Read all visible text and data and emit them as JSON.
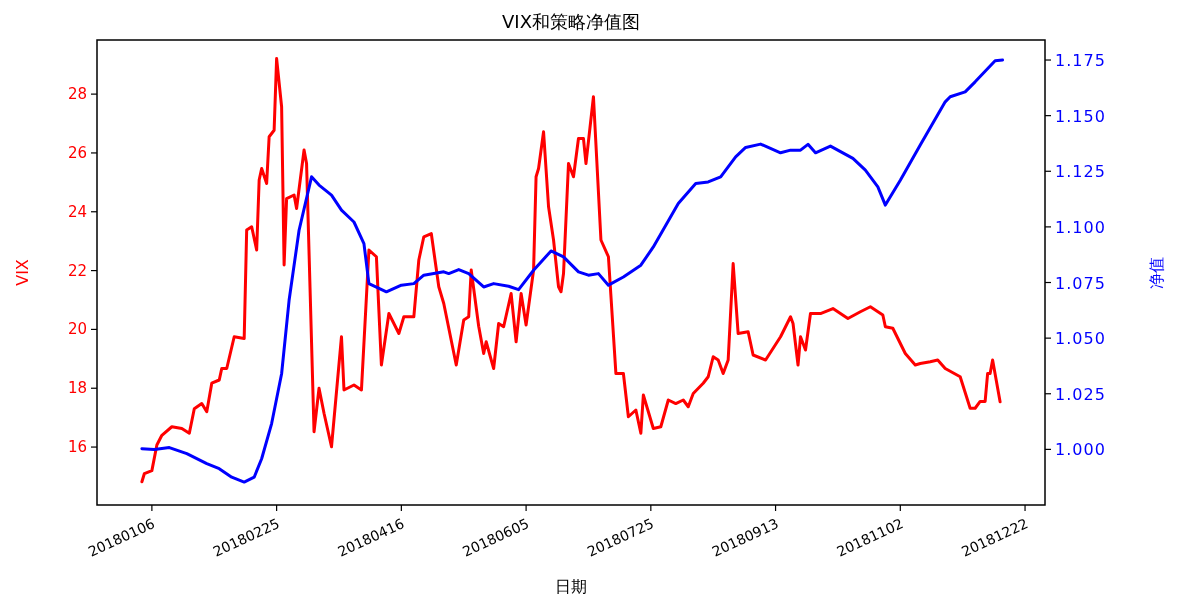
{
  "chart_data": {
    "type": "line",
    "title": "VIX和策略净值图",
    "xlabel": "日期",
    "ylabel": "VIX",
    "y2label": "净值",
    "xlim": [
      "2017-12-15",
      "2018-12-30"
    ],
    "xticks": [
      {
        "value": "2018-01-06",
        "label": "20180106"
      },
      {
        "value": "2018-02-25",
        "label": "20180225"
      },
      {
        "value": "2018-04-16",
        "label": "20180416"
      },
      {
        "value": "2018-06-05",
        "label": "20180605"
      },
      {
        "value": "2018-07-25",
        "label": "20180725"
      },
      {
        "value": "2018-09-13",
        "label": "20180913"
      },
      {
        "value": "2018-11-02",
        "label": "20181102"
      },
      {
        "value": "2018-12-22",
        "label": "20181222"
      }
    ],
    "ylim": [
      14.03,
      29.84
    ],
    "yticks": [
      16,
      18,
      20,
      22,
      24,
      26,
      28
    ],
    "y2lim": [
      0.975,
      1.184
    ],
    "y2ticks": [
      {
        "value": 1.0,
        "label": "1.000"
      },
      {
        "value": 1.025,
        "label": "1.025"
      },
      {
        "value": 1.05,
        "label": "1.050"
      },
      {
        "value": 1.075,
        "label": "1.075"
      },
      {
        "value": 1.1,
        "label": "1.100"
      },
      {
        "value": 1.125,
        "label": "1.125"
      },
      {
        "value": 1.15,
        "label": "1.150"
      },
      {
        "value": 1.175,
        "label": "1.175"
      }
    ],
    "series": [
      {
        "color": "#ff0000",
        "axis": "y",
        "x": [
          "2018-01-02",
          "2018-01-03",
          "2018-01-06",
          "2018-01-08",
          "2018-01-10",
          "2018-01-14",
          "2018-01-18",
          "2018-01-21",
          "2018-01-23",
          "2018-01-26",
          "2018-01-28",
          "2018-01-30",
          "2018-02-02",
          "2018-02-03",
          "2018-02-05",
          "2018-02-08",
          "2018-02-12",
          "2018-02-13",
          "2018-02-15",
          "2018-02-17",
          "2018-02-18",
          "2018-02-19",
          "2018-02-21",
          "2018-02-22",
          "2018-02-24",
          "2018-02-25",
          "2018-02-27",
          "2018-02-28",
          "2018-03-01",
          "2018-03-04",
          "2018-03-05",
          "2018-03-08",
          "2018-03-09",
          "2018-03-12",
          "2018-03-14",
          "2018-03-16",
          "2018-03-19",
          "2018-03-23",
          "2018-03-24",
          "2018-03-28",
          "2018-03-31",
          "2018-04-03",
          "2018-04-06",
          "2018-04-08",
          "2018-04-11",
          "2018-04-15",
          "2018-04-17",
          "2018-04-21",
          "2018-04-23",
          "2018-04-25",
          "2018-04-28",
          "2018-05-01",
          "2018-05-03",
          "2018-05-08",
          "2018-05-11",
          "2018-05-13",
          "2018-05-14",
          "2018-05-17",
          "2018-05-19",
          "2018-05-20",
          "2018-05-23",
          "2018-05-25",
          "2018-05-27",
          "2018-05-30",
          "2018-06-01",
          "2018-06-03",
          "2018-06-05",
          "2018-06-08",
          "2018-06-09",
          "2018-06-10",
          "2018-06-12",
          "2018-06-14",
          "2018-06-16",
          "2018-06-18",
          "2018-06-19",
          "2018-06-20",
          "2018-06-22",
          "2018-06-24",
          "2018-06-26",
          "2018-06-28",
          "2018-06-29",
          "2018-07-02",
          "2018-07-05",
          "2018-07-08",
          "2018-07-11",
          "2018-07-14",
          "2018-07-16",
          "2018-07-19",
          "2018-07-21",
          "2018-07-22",
          "2018-07-26",
          "2018-07-29",
          "2018-08-01",
          "2018-08-04",
          "2018-08-07",
          "2018-08-09",
          "2018-08-11",
          "2018-08-15",
          "2018-08-17",
          "2018-08-19",
          "2018-08-21",
          "2018-08-23",
          "2018-08-25",
          "2018-08-27",
          "2018-08-29",
          "2018-09-02",
          "2018-09-04",
          "2018-09-09",
          "2018-09-15",
          "2018-09-19",
          "2018-09-20",
          "2018-09-22",
          "2018-09-23",
          "2018-09-25",
          "2018-09-27",
          "2018-10-01",
          "2018-10-06",
          "2018-10-12",
          "2018-10-17",
          "2018-10-21",
          "2018-10-26",
          "2018-10-27",
          "2018-10-30",
          "2018-11-04",
          "2018-11-08",
          "2018-11-10",
          "2018-11-14",
          "2018-11-17",
          "2018-11-20",
          "2018-11-26",
          "2018-11-30",
          "2018-12-02",
          "2018-12-04",
          "2018-12-06",
          "2018-12-07",
          "2018-12-08",
          "2018-12-09",
          "2018-12-12"
        ],
        "values": [
          14.82,
          15.1,
          15.2,
          16.07,
          16.4,
          16.69,
          16.63,
          16.47,
          17.3,
          17.48,
          17.2,
          18.17,
          18.28,
          18.67,
          18.67,
          19.75,
          19.69,
          23.38,
          23.49,
          22.7,
          25.08,
          25.47,
          24.96,
          26.55,
          26.77,
          29.21,
          27.57,
          22.19,
          24.45,
          24.57,
          24.11,
          26.1,
          25.64,
          16.52,
          18.0,
          17.15,
          16.01,
          19.75,
          17.94,
          18.11,
          17.94,
          22.7,
          22.47,
          18.79,
          20.54,
          19.86,
          20.43,
          20.43,
          22.36,
          23.15,
          23.26,
          21.45,
          20.88,
          18.79,
          20.32,
          20.43,
          22.02,
          20.11,
          19.18,
          19.58,
          18.67,
          20.2,
          20.09,
          21.22,
          19.58,
          21.22,
          20.15,
          22.02,
          25.19,
          25.47,
          26.72,
          24.17,
          23.04,
          21.45,
          21.28,
          21.9,
          25.64,
          25.19,
          26.49,
          26.49,
          25.64,
          27.91,
          23.04,
          22.47,
          18.5,
          18.5,
          17.03,
          17.26,
          16.47,
          17.77,
          16.63,
          16.69,
          17.6,
          17.48,
          17.6,
          17.37,
          17.82,
          18.17,
          18.39,
          19.07,
          18.96,
          18.5,
          18.96,
          22.24,
          19.86,
          19.92,
          19.13,
          18.96,
          19.75,
          20.43,
          20.2,
          18.79,
          19.75,
          19.3,
          20.54,
          20.54,
          20.71,
          20.37,
          20.6,
          20.77,
          20.49,
          20.09,
          20.04,
          19.18,
          18.79,
          18.84,
          18.9,
          18.96,
          18.67,
          18.39,
          17.32,
          17.32,
          17.55,
          17.55,
          18.5,
          18.5,
          18.96,
          17.54
        ]
      },
      {
        "color": "#0000ff",
        "axis": "y2",
        "x": [
          "2018-01-02",
          "2018-01-07",
          "2018-01-13",
          "2018-01-20",
          "2018-01-28",
          "2018-02-02",
          "2018-02-07",
          "2018-02-12",
          "2018-02-16",
          "2018-02-19",
          "2018-02-23",
          "2018-02-27",
          "2018-03-02",
          "2018-03-06",
          "2018-03-11",
          "2018-03-14",
          "2018-03-19",
          "2018-03-23",
          "2018-03-28",
          "2018-04-01",
          "2018-04-03",
          "2018-04-10",
          "2018-04-16",
          "2018-04-21",
          "2018-04-25",
          "2018-05-03",
          "2018-05-05",
          "2018-05-09",
          "2018-05-13",
          "2018-05-19",
          "2018-05-23",
          "2018-05-29",
          "2018-06-02",
          "2018-06-08",
          "2018-06-15",
          "2018-06-20",
          "2018-06-26",
          "2018-06-30",
          "2018-07-04",
          "2018-07-08",
          "2018-07-14",
          "2018-07-21",
          "2018-07-26",
          "2018-08-05",
          "2018-08-12",
          "2018-08-17",
          "2018-08-22",
          "2018-08-28",
          "2018-09-01",
          "2018-09-07",
          "2018-09-15",
          "2018-09-19",
          "2018-09-23",
          "2018-09-26",
          "2018-09-29",
          "2018-10-05",
          "2018-10-14",
          "2018-10-19",
          "2018-10-24",
          "2018-10-27",
          "2018-11-02",
          "2018-11-10",
          "2018-11-20",
          "2018-11-22",
          "2018-11-28",
          "2018-12-02",
          "2018-12-10",
          "2018-12-13"
        ],
        "values": [
          1.0003,
          0.9999,
          1.0008,
          0.9981,
          0.9936,
          0.9913,
          0.9875,
          0.9853,
          0.9875,
          0.9958,
          1.0116,
          1.034,
          1.067,
          1.0985,
          1.1225,
          1.1188,
          1.1143,
          1.1075,
          1.1022,
          1.0925,
          1.0745,
          1.0708,
          1.0738,
          1.0745,
          1.0783,
          1.0798,
          1.079,
          1.0808,
          1.079,
          1.073,
          1.0745,
          1.0733,
          1.0718,
          1.0805,
          1.0892,
          1.0865,
          1.0798,
          1.0783,
          1.079,
          1.0738,
          1.0775,
          1.0828,
          1.091,
          1.1105,
          1.1195,
          1.1202,
          1.1225,
          1.1315,
          1.1357,
          1.1372,
          1.1333,
          1.1345,
          1.1345,
          1.1371,
          1.1333,
          1.1363,
          1.1308,
          1.1255,
          1.118,
          1.1098,
          1.121,
          1.1368,
          1.1562,
          1.1585,
          1.1607,
          1.1652,
          1.1747,
          1.175
        ]
      }
    ]
  }
}
